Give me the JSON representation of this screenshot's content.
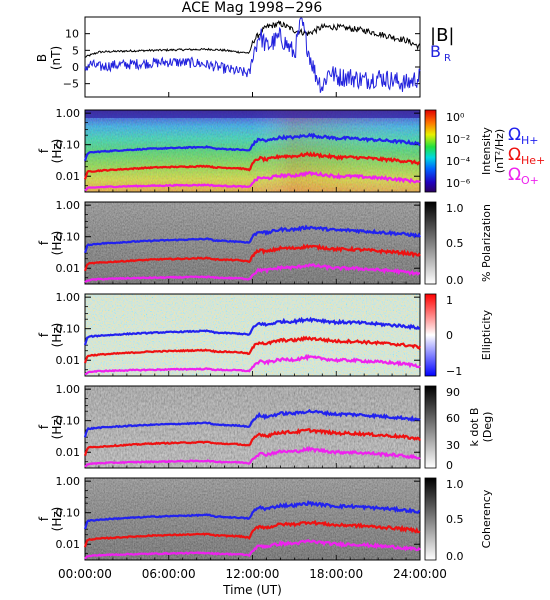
{
  "title": "ACE Mag 1998−296",
  "legend_top": {
    "b_total": "|B|",
    "b_r": "B",
    "b_r_sub": "R"
  },
  "x_ticks": [
    "00:00:00",
    "06:00:00",
    "12:00:00",
    "18:00:00",
    "24:00:00"
  ],
  "x_axis_label": "Time (UT)",
  "freq_axis": {
    "label_f": "f",
    "label_unit": "(Hz)",
    "ticks": [
      "1.00",
      "0.10",
      "0.01"
    ]
  },
  "panels": {
    "b_field": {
      "ylabel_1": "B",
      "ylabel_2": "(nT)",
      "yticks": [
        "10",
        "5",
        "0",
        "−5"
      ]
    },
    "intensity": {
      "bar_label_1": "Intensity",
      "bar_label_2": "(nT²/Hz)",
      "bar_ticks": [
        "10⁰",
        "10⁻²",
        "10⁻⁴",
        "10⁻⁶"
      ],
      "gyro_labels": [
        {
          "sym": "Ω",
          "sub": "H+",
          "color": "#2222ee"
        },
        {
          "sym": "Ω",
          "sub": "He+",
          "color": "#ee1111"
        },
        {
          "sym": "Ω",
          "sub": "O+",
          "color": "#ee22ee"
        }
      ]
    },
    "polarization": {
      "bar_label": "% Polarization",
      "bar_ticks": [
        "1.0",
        "0.5",
        "0.0"
      ]
    },
    "ellipticity": {
      "bar_label": "Ellipticity",
      "bar_ticks": [
        "1",
        "0",
        "−1"
      ]
    },
    "kdotb": {
      "bar_label_1": "k dot B",
      "bar_label_2": "(Deg)",
      "bar_ticks": [
        "90",
        "60",
        "30",
        "0"
      ]
    },
    "coherency": {
      "bar_label": "Coherency",
      "bar_ticks": [
        "1.0",
        "0.5",
        "0.0"
      ]
    }
  },
  "colors": {
    "b_total": "#000000",
    "b_r": "#2222dd",
    "h_plus": "#2222ee",
    "he_plus": "#ee1111",
    "o_plus": "#ee22ee"
  },
  "chart_data": {
    "type": "line",
    "title": "ACE Mag 1998−296",
    "x_unit": "hours UT",
    "xlim": [
      0,
      24
    ],
    "panel_top": {
      "ylabel": "B (nT)",
      "ylim": [
        -9,
        15
      ],
      "series": [
        {
          "name": "|B|",
          "x": [
            0,
            1,
            3,
            5,
            7,
            9,
            10,
            11,
            11.8,
            12,
            12.5,
            13,
            14,
            15,
            16,
            17,
            18,
            19,
            20,
            21,
            22,
            23,
            24
          ],
          "y": [
            3,
            4.5,
            4.8,
            5,
            5.2,
            5.3,
            5,
            4.5,
            4.2,
            7.5,
            10,
            12,
            13,
            11,
            10,
            12,
            12,
            11.5,
            11,
            10,
            9,
            8,
            6
          ]
        },
        {
          "name": "B",
          "x": [
            0,
            0.3,
            1,
            2,
            4,
            6,
            8,
            9,
            10,
            11.8,
            12,
            12.5,
            13,
            14,
            15,
            15.5,
            16,
            16.5,
            17,
            17.5,
            18,
            19,
            20,
            21,
            22,
            23,
            24
          ],
          "y": [
            -1,
            1,
            0,
            0.5,
            1,
            1.5,
            1.2,
            0.5,
            -0.5,
            -2,
            3,
            10,
            6,
            9,
            4,
            14,
            5,
            -2,
            -6,
            -1,
            -3,
            -3,
            -4,
            -3,
            -4,
            -5,
            -3
          ]
        }
      ]
    },
    "gyrofrequency_lines": {
      "y_unit": "Hz",
      "ylim_log10": [
        -2.5,
        0.1
      ],
      "series": [
        {
          "name": "ΩH+",
          "x": [
            0,
            0.2,
            1,
            3,
            5,
            7,
            8.8,
            9.3,
            11,
            11.8,
            12,
            12.5,
            13,
            14,
            15,
            16,
            17,
            18,
            19,
            20,
            21,
            22,
            23,
            24
          ],
          "y": [
            0.03,
            0.055,
            0.06,
            0.068,
            0.075,
            0.08,
            0.085,
            0.075,
            0.07,
            0.065,
            0.1,
            0.15,
            0.13,
            0.17,
            0.17,
            0.2,
            0.18,
            0.16,
            0.16,
            0.15,
            0.14,
            0.13,
            0.12,
            0.105
          ]
        },
        {
          "name": "ΩHe+",
          "x": [
            0,
            0.2,
            1,
            3,
            5,
            7,
            8.8,
            9.3,
            11,
            11.8,
            12,
            12.5,
            13,
            14,
            15,
            16,
            17,
            18,
            19,
            20,
            21,
            22,
            23,
            24
          ],
          "y": [
            0.008,
            0.014,
            0.015,
            0.017,
            0.019,
            0.02,
            0.021,
            0.019,
            0.018,
            0.016,
            0.025,
            0.038,
            0.033,
            0.043,
            0.043,
            0.05,
            0.045,
            0.04,
            0.04,
            0.038,
            0.035,
            0.033,
            0.03,
            0.026
          ]
        },
        {
          "name": "ΩO+",
          "x": [
            0,
            0.2,
            1,
            3,
            5,
            7,
            8.8,
            9.3,
            11,
            11.8,
            12,
            12.5,
            13,
            14,
            15,
            16,
            17,
            18,
            19,
            20,
            21,
            22,
            23,
            24
          ],
          "y": [
            0.0035,
            0.0042,
            0.0045,
            0.0048,
            0.005,
            0.0052,
            0.0053,
            0.005,
            0.0048,
            0.0045,
            0.0062,
            0.009,
            0.0085,
            0.0105,
            0.0105,
            0.0125,
            0.0113,
            0.01,
            0.01,
            0.0095,
            0.0088,
            0.0083,
            0.0075,
            0.0066
          ]
        }
      ]
    }
  }
}
